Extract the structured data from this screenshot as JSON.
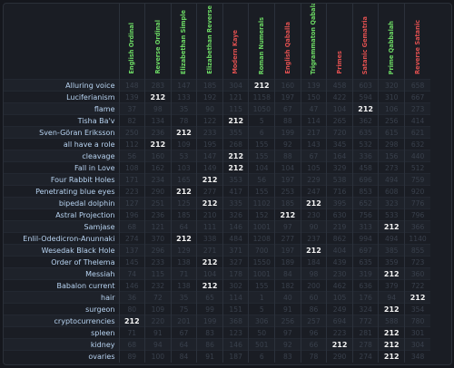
{
  "colors": {
    "panel_background": "#1a1d24",
    "phrase_text": "#b8d4f2",
    "value_text_dim": "#39404c",
    "match_text": "#f4f4f4",
    "header_green": "#6cd964",
    "header_red": "#e05050"
  },
  "ciphers": [
    {
      "label": "English Ordinal",
      "color": "#6cd964"
    },
    {
      "label": "Reverse Ordinal",
      "color": "#6cd964"
    },
    {
      "label": "Elizabethan Simple",
      "color": "#6cd964"
    },
    {
      "label": "Elizabethan Reverse",
      "color": "#6cd964"
    },
    {
      "label": "Modern Kaye",
      "color": "#e05050"
    },
    {
      "label": "Roman Numerals",
      "color": "#6cd964"
    },
    {
      "label": "English Qaballa",
      "color": "#e05050"
    },
    {
      "label": "Trigrammaton Qabalah",
      "color": "#6cd964"
    },
    {
      "label": "Primes",
      "color": "#e05050"
    },
    {
      "label": "Satanic Gematria",
      "color": "#e05050"
    },
    {
      "label": "Prime Qabbalah",
      "color": "#6cd964"
    },
    {
      "label": "Reverse Satanic",
      "color": "#e05050"
    }
  ],
  "match_value": "212",
  "rows": [
    {
      "phrase": "Alluring voice",
      "values": [
        "148",
        "283",
        "147",
        "185",
        "304",
        "212",
        "160",
        "139",
        "458",
        "603",
        "320",
        "658"
      ]
    },
    {
      "phrase": "Luciferianism",
      "values": [
        "139",
        "212",
        "133",
        "192",
        "121",
        "1158",
        "197",
        "150",
        "422",
        "594",
        "310",
        "667"
      ]
    },
    {
      "phrase": "flame",
      "values": [
        "37",
        "98",
        "35",
        "90",
        "115",
        "1050",
        "67",
        "47",
        "104",
        "212",
        "106",
        "273"
      ]
    },
    {
      "phrase": "Tisha Ba'v",
      "values": [
        "82",
        "134",
        "78",
        "122",
        "212",
        "5",
        "88",
        "114",
        "265",
        "362",
        "256",
        "414"
      ]
    },
    {
      "phrase": "Sven-Göran Eriksson",
      "values": [
        "250",
        "236",
        "212",
        "233",
        "355",
        "6",
        "199",
        "217",
        "720",
        "635",
        "615",
        "621"
      ]
    },
    {
      "phrase": "all have a role",
      "values": [
        "112",
        "212",
        "109",
        "195",
        "268",
        "155",
        "92",
        "143",
        "345",
        "532",
        "298",
        "632"
      ]
    },
    {
      "phrase": "cleavage",
      "values": [
        "56",
        "160",
        "53",
        "147",
        "212",
        "155",
        "88",
        "67",
        "164",
        "336",
        "156",
        "440"
      ]
    },
    {
      "phrase": "Fall in Love",
      "values": [
        "108",
        "162",
        "103",
        "149",
        "212",
        "104",
        "104",
        "105",
        "329",
        "458",
        "273",
        "512"
      ]
    },
    {
      "phrase": "Four Rabbit Holes",
      "values": [
        "171",
        "234",
        "165",
        "212",
        "353",
        "56",
        "197",
        "229",
        "538",
        "696",
        "494",
        "759"
      ]
    },
    {
      "phrase": "Penetrating blue eyes",
      "values": [
        "223",
        "290",
        "212",
        "277",
        "417",
        "155",
        "253",
        "247",
        "716",
        "853",
        "608",
        "920"
      ]
    },
    {
      "phrase": "bipedal dolphin",
      "values": [
        "127",
        "251",
        "125",
        "212",
        "335",
        "1102",
        "185",
        "212",
        "395",
        "652",
        "323",
        "776"
      ]
    },
    {
      "phrase": "Astral Projection",
      "values": [
        "196",
        "236",
        "185",
        "210",
        "326",
        "152",
        "212",
        "230",
        "630",
        "756",
        "533",
        "796"
      ]
    },
    {
      "phrase": "Samjase",
      "values": [
        "68",
        "121",
        "64",
        "111",
        "146",
        "1001",
        "97",
        "90",
        "219",
        "313",
        "212",
        "366"
      ]
    },
    {
      "phrase": "Enlil-Odedicron-Anunnaki",
      "values": [
        "274",
        "370",
        "212",
        "338",
        "484",
        "1208",
        "277",
        "237",
        "862",
        "994",
        "494",
        "1140"
      ]
    },
    {
      "phrase": "Wesedak Black Hole",
      "values": [
        "137",
        "296",
        "129",
        "271",
        "371",
        "700",
        "197",
        "212",
        "404",
        "697",
        "385",
        "855"
      ]
    },
    {
      "phrase": "Order of Thelema",
      "values": [
        "145",
        "233",
        "138",
        "212",
        "327",
        "1550",
        "189",
        "184",
        "439",
        "635",
        "359",
        "723"
      ]
    },
    {
      "phrase": "Messiah",
      "values": [
        "74",
        "115",
        "71",
        "104",
        "178",
        "1001",
        "84",
        "98",
        "230",
        "319",
        "212",
        "360"
      ]
    },
    {
      "phrase": "Babalon current",
      "values": [
        "146",
        "232",
        "138",
        "212",
        "302",
        "155",
        "182",
        "200",
        "462",
        "636",
        "379",
        "722"
      ]
    },
    {
      "phrase": "hair",
      "values": [
        "36",
        "72",
        "35",
        "65",
        "114",
        "1",
        "40",
        "60",
        "105",
        "176",
        "94",
        "212"
      ]
    },
    {
      "phrase": "surgeon",
      "values": [
        "80",
        "109",
        "75",
        "99",
        "151",
        "5",
        "91",
        "86",
        "249",
        "324",
        "212",
        "354"
      ]
    },
    {
      "phrase": "cryptocurrencies",
      "values": [
        "212",
        "220",
        "201",
        "199",
        "368",
        "306",
        "256",
        "257",
        "694",
        "772",
        "588",
        "780"
      ]
    },
    {
      "phrase": "spleen",
      "values": [
        "71",
        "91",
        "67",
        "83",
        "123",
        "50",
        "97",
        "96",
        "223",
        "281",
        "212",
        "301"
      ]
    },
    {
      "phrase": "kidney",
      "values": [
        "68",
        "94",
        "64",
        "86",
        "146",
        "501",
        "92",
        "66",
        "212",
        "278",
        "212",
        "304"
      ]
    },
    {
      "phrase": "ovaries",
      "values": [
        "89",
        "100",
        "84",
        "91",
        "187",
        "6",
        "83",
        "78",
        "290",
        "274",
        "212",
        "348"
      ]
    }
  ]
}
